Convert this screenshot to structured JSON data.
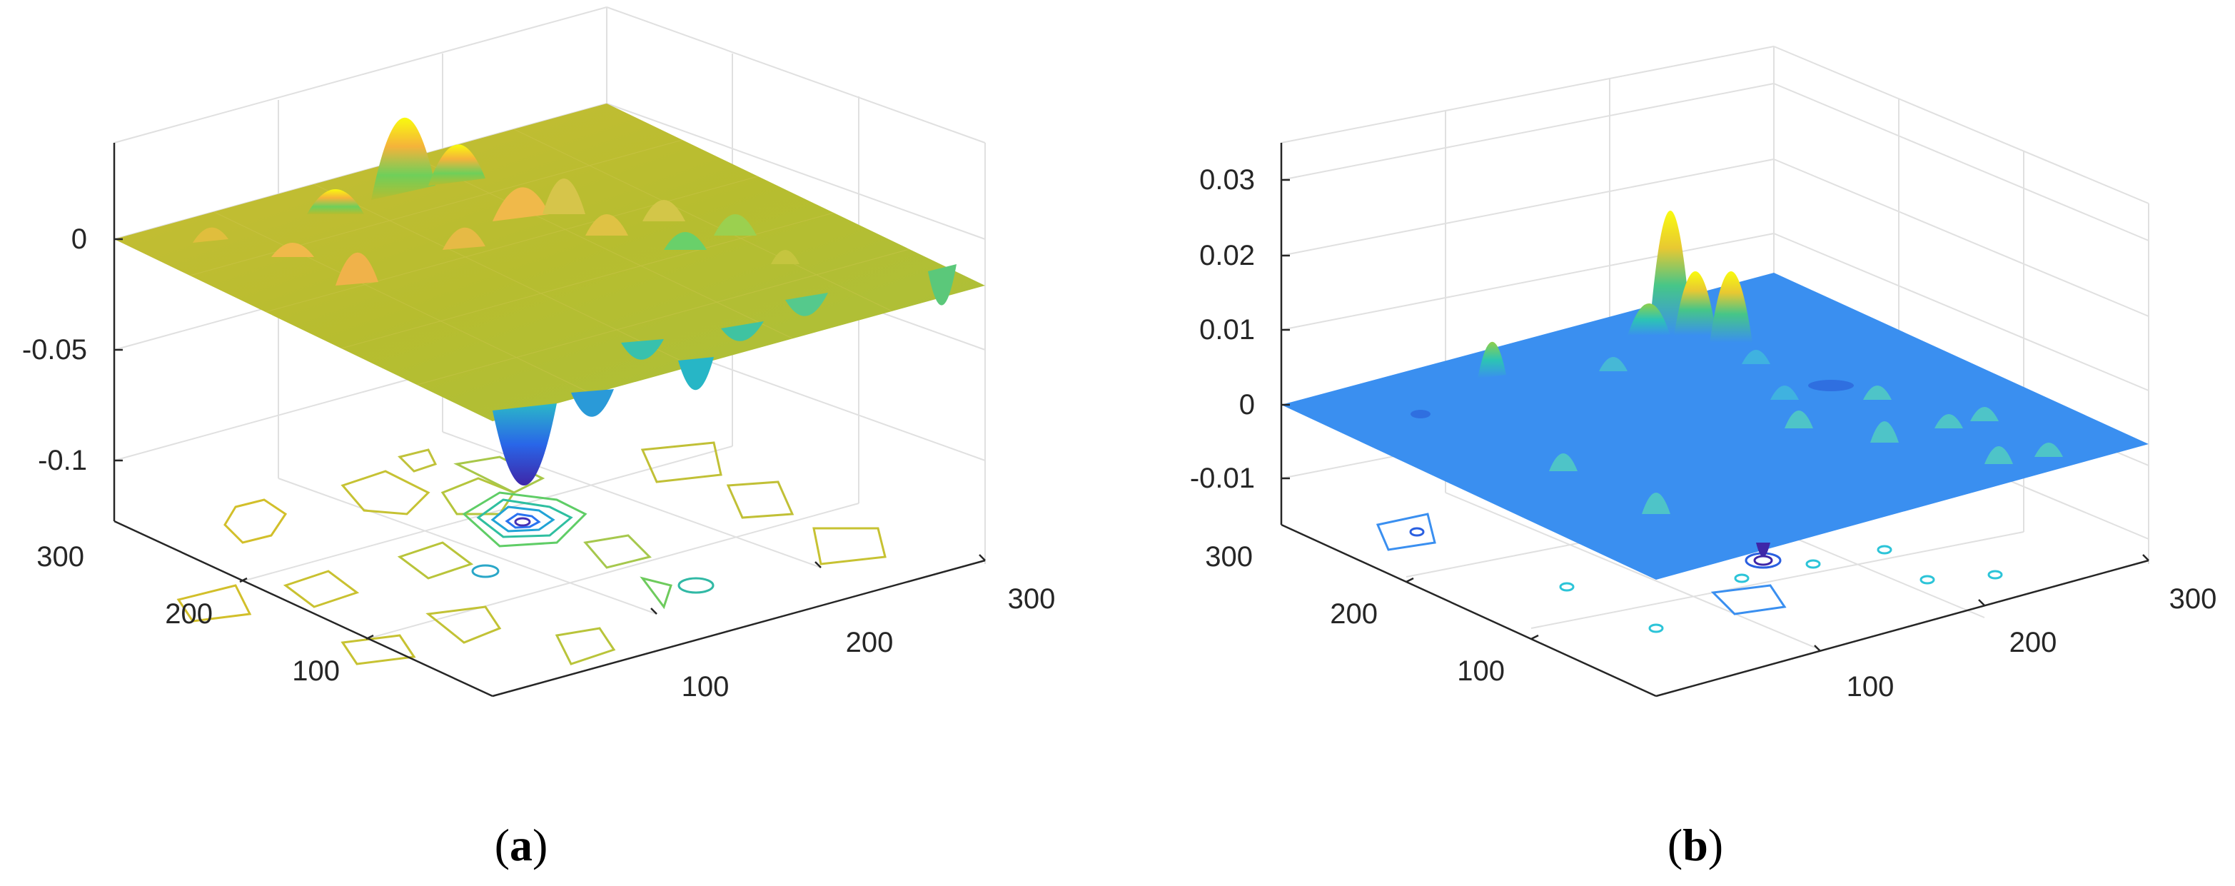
{
  "figure": {
    "panels": [
      {
        "label": "a",
        "chart_data": {
          "type": "surface",
          "view": "3d",
          "xticks": [
            100,
            200,
            300
          ],
          "yticks": [
            100,
            200,
            300
          ],
          "zticks": [
            0,
            -0.05,
            -0.1
          ],
          "xlim": [
            0,
            300
          ],
          "ylim": [
            0,
            300
          ],
          "zlim": [
            -0.13,
            0.04
          ],
          "grid": true,
          "colormap": "parula",
          "surface_level": 0,
          "surface_color": "#b7bd2f",
          "has_contour_projection": true,
          "features": [
            {
              "x": 150,
              "y": 150,
              "z": -0.12,
              "kind": "trough"
            },
            {
              "x": 70,
              "y": 300,
              "z": 0.035,
              "kind": "peak"
            },
            {
              "x": 120,
              "y": 210,
              "z": 0.015,
              "kind": "peak"
            },
            {
              "x": 230,
              "y": 300,
              "z": -0.045,
              "kind": "trough"
            }
          ]
        }
      },
      {
        "label": "b",
        "chart_data": {
          "type": "surface",
          "view": "3d",
          "xticks": [
            100,
            200,
            300
          ],
          "yticks": [
            100,
            200,
            300
          ],
          "zticks": [
            0.03,
            0.02,
            0.01,
            0,
            -0.01
          ],
          "xlim": [
            0,
            300
          ],
          "ylim": [
            0,
            300
          ],
          "zlim": [
            -0.015,
            0.035
          ],
          "grid": true,
          "colormap": "parula",
          "surface_level": 0,
          "surface_color": "#3a8ff0",
          "has_contour_projection": true,
          "features": [
            {
              "x": 120,
              "y": 200,
              "z": 0.032,
              "kind": "peak"
            },
            {
              "x": 140,
              "y": 210,
              "z": 0.018,
              "kind": "peak"
            },
            {
              "x": 150,
              "y": 220,
              "z": 0.019,
              "kind": "peak"
            },
            {
              "x": 40,
              "y": 290,
              "z": 0.01,
              "kind": "peak"
            },
            {
              "x": 150,
              "y": 150,
              "z": -0.014,
              "kind": "trough"
            }
          ]
        }
      }
    ]
  }
}
